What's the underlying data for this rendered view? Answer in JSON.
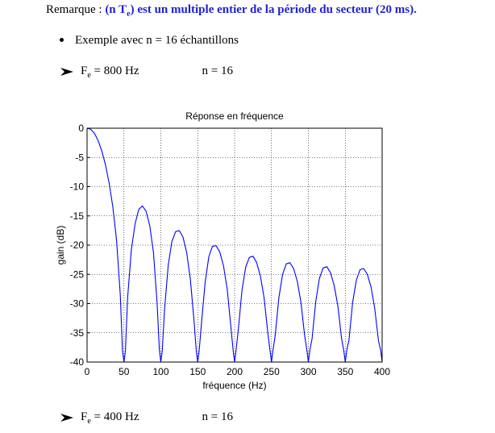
{
  "remark": {
    "prefix": "Remarque : ",
    "highlight_open": "(n T",
    "highlight_sub": "e",
    "highlight_rest": ") est un multiple entier de la période du secteur (20 ms)."
  },
  "bullet": {
    "text": "Exemple avec n = 16 échantillons"
  },
  "case1": {
    "fe_label": "F",
    "fe_sub": "e",
    "fe_value": " = 800 Hz",
    "n_label": "n = 16"
  },
  "case2": {
    "fe_label": "F",
    "fe_sub": "e",
    "fe_value": " = 400 Hz",
    "n_label": "n = 16"
  },
  "colors": {
    "accent": "#1f1fd6",
    "curve": "#0000ff"
  },
  "chart_data": {
    "type": "line",
    "title": "Réponse en fréquence",
    "xlabel": "fréquence (Hz)",
    "ylabel": "gain (dB)",
    "xlim": [
      0,
      400
    ],
    "ylim": [
      -40,
      0
    ],
    "xticks": [
      0,
      50,
      100,
      150,
      200,
      250,
      300,
      350,
      400
    ],
    "yticks": [
      0,
      -5,
      -10,
      -15,
      -20,
      -25,
      -30,
      -35,
      -40
    ],
    "grid": true,
    "series": [
      {
        "x": [
          0,
          5,
          10,
          15,
          20,
          25,
          30,
          35,
          40,
          45,
          48,
          50,
          52,
          55,
          60,
          65,
          70,
          75,
          80,
          85,
          90,
          95,
          98,
          100,
          102,
          105,
          110,
          115,
          120,
          125,
          130,
          135,
          140,
          145,
          148,
          150,
          152,
          155,
          160,
          165,
          170,
          175,
          180,
          185,
          190,
          195,
          198,
          200,
          202,
          205,
          210,
          215,
          220,
          225,
          230,
          235,
          240,
          245,
          248,
          250,
          252,
          255,
          260,
          265,
          270,
          275,
          280,
          285,
          290,
          295,
          298,
          300,
          302,
          305,
          310,
          315,
          320,
          325,
          330,
          335,
          340,
          345,
          348,
          350,
          352,
          355,
          360,
          365,
          370,
          375,
          380,
          385,
          390,
          395,
          398,
          400
        ],
        "y": [
          0,
          -0.2,
          -0.9,
          -2.1,
          -3.9,
          -6.3,
          -9.4,
          -13.5,
          -19.2,
          -28.5,
          -38,
          -40,
          -38,
          -29,
          -20.8,
          -16.4,
          -13.9,
          -13.3,
          -14.2,
          -16.7,
          -21.3,
          -30,
          -38,
          -40,
          -38,
          -31,
          -23.4,
          -19.4,
          -17.7,
          -17.5,
          -18.6,
          -21.2,
          -25.8,
          -33,
          -38,
          -40,
          -38,
          -33.5,
          -26.5,
          -22,
          -20.2,
          -20.1,
          -21.2,
          -23.6,
          -27.6,
          -34,
          -38,
          -40,
          -38,
          -34.5,
          -27.8,
          -23.8,
          -22.1,
          -21.9,
          -23,
          -25.3,
          -29,
          -35,
          -38,
          -40,
          -38,
          -35.5,
          -29,
          -25,
          -23.2,
          -23,
          -24,
          -26.2,
          -29.8,
          -35.5,
          -38,
          -40,
          -38,
          -36,
          -29.6,
          -25.7,
          -23.9,
          -23.7,
          -24.7,
          -26.9,
          -30.4,
          -36,
          -38,
          -40,
          -38,
          -36.3,
          -29.8,
          -26,
          -24.2,
          -24,
          -25,
          -27.2,
          -30.8,
          -36.3,
          -38,
          -40
        ]
      }
    ]
  }
}
